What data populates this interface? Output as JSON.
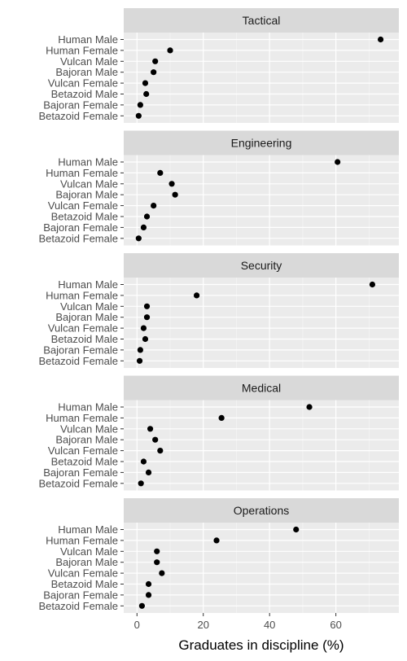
{
  "chart_data": {
    "type": "scatter",
    "xlabel": "Graduates in discipline (%)",
    "ylabel": "",
    "xlim": [
      -4,
      79
    ],
    "xticks": [
      0,
      20,
      40,
      60
    ],
    "grid": true,
    "categories": [
      "Human Male",
      "Human Female",
      "Vulcan Male",
      "Bajoran Male",
      "Vulcan Female",
      "Betazoid Male",
      "Bajoran Female",
      "Betazoid Female"
    ],
    "facets": [
      {
        "name": "Tactical",
        "values": [
          73.5,
          10,
          5.5,
          5,
          2.5,
          2.8,
          1,
          0.5
        ]
      },
      {
        "name": "Engineering",
        "values": [
          60.5,
          7,
          10.5,
          11.5,
          5,
          3,
          2,
          0.5
        ]
      },
      {
        "name": "Security",
        "values": [
          71,
          18,
          3,
          3,
          2,
          2.5,
          1,
          0.8
        ]
      },
      {
        "name": "Medical",
        "values": [
          52,
          25.5,
          4,
          5.5,
          7,
          2,
          3.5,
          1.2
        ]
      },
      {
        "name": "Operations",
        "values": [
          48,
          24,
          6,
          6,
          7.5,
          3.5,
          3.5,
          1.5
        ]
      }
    ]
  },
  "colors": {
    "panel_bg": "#ebebeb",
    "strip_bg": "#d9d9d9",
    "grid_major": "#ffffff",
    "point": "#000000"
  }
}
